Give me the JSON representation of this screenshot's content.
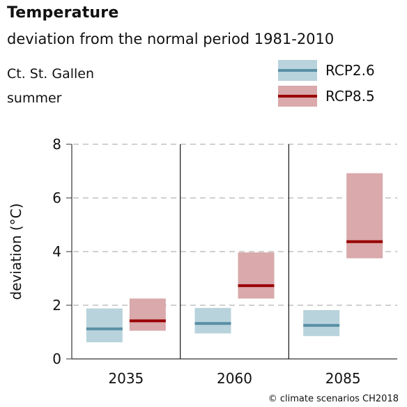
{
  "header": {
    "title": "Temperature",
    "subtitle": "deviation from the normal period 1981-2010",
    "region": "Ct. St. Gallen",
    "season": "summer"
  },
  "footer": {
    "credit": "© climate scenarios CH2018"
  },
  "chart_data": {
    "type": "bar",
    "title": "Temperature",
    "subtitle": "deviation from the normal period 1981-2010",
    "xlabel": "",
    "ylabel": "deviation (°C)",
    "ylim": [
      0,
      8
    ],
    "yticks": [
      0,
      2,
      4,
      6,
      8
    ],
    "grid": true,
    "legend_position": "top-right",
    "categories": [
      "2035",
      "2060",
      "2085"
    ],
    "series": [
      {
        "name": "RCP2.6",
        "band_color": "#b8d3dc",
        "line_color": "#5a8fa5",
        "low": [
          0.62,
          0.95,
          0.85
        ],
        "median": [
          1.12,
          1.32,
          1.25
        ],
        "high": [
          1.88,
          1.9,
          1.82
        ]
      },
      {
        "name": "RCP8.5",
        "band_color": "#d9a9ab",
        "line_color": "#9a0000",
        "low": [
          1.05,
          2.25,
          3.75
        ],
        "median": [
          1.42,
          2.73,
          4.37
        ],
        "high": [
          2.25,
          3.97,
          6.92
        ]
      }
    ]
  }
}
